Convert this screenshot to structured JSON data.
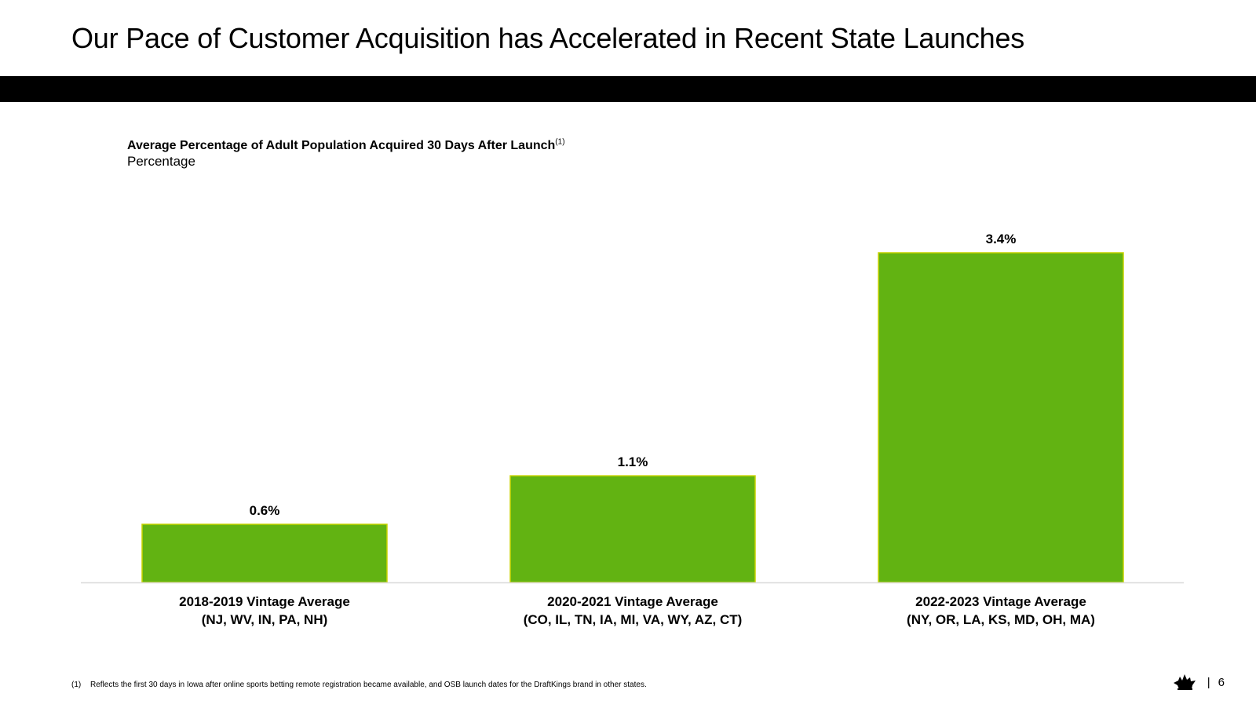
{
  "slide": {
    "title": "Our Pace of Customer Acquisition has Accelerated in Recent State Launches",
    "page_separator": "|",
    "page_number": "6"
  },
  "chart_heading": {
    "title": "Average Percentage of Adult Population Acquired 30 Days After Launch",
    "footnote_ref": "(1)",
    "unit": "Percentage"
  },
  "footnote": {
    "marker": "(1)",
    "text": "Reflects the first 30 days in Iowa after online sports betting remote registration became available, and OSB launch dates for the DraftKings brand in other states."
  },
  "logo": {
    "icon": "draftkings-crown-icon"
  },
  "chart_data": {
    "type": "bar",
    "categories": [
      [
        "2018-2019 Vintage Average",
        "(NJ, WV, IN, PA, NH)"
      ],
      [
        "2020-2021 Vintage Average",
        "(CO, IL, TN, IA, MI, VA, WY, AZ, CT)"
      ],
      [
        "2022-2023 Vintage Average",
        "(NY, OR, LA, KS, MD, OH, MA)"
      ]
    ],
    "values": [
      0.6,
      1.1,
      3.4
    ],
    "value_labels": [
      "0.6%",
      "1.1%",
      "3.4%"
    ],
    "title": "Average Percentage of Adult Population Acquired 30 Days After Launch",
    "ylabel": "Percentage",
    "ylim": [
      0,
      3.4
    ],
    "grid": false,
    "legend": "none",
    "colors": {
      "bar_fill": "#62b312",
      "bar_border": "#c9d400",
      "axis": "#d9d9d9"
    }
  }
}
